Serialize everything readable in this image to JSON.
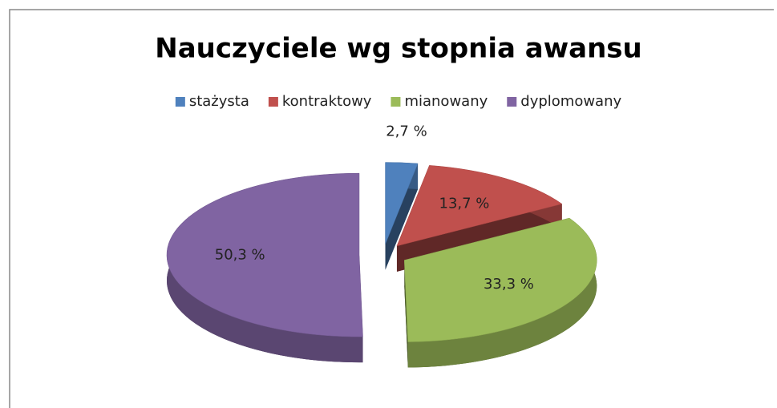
{
  "chart_data": {
    "type": "pie",
    "title": "Nauczyciele wg stopnia awansu",
    "categories": [
      "stażysta",
      "kontraktowy",
      "mianowany",
      "dyplomowany"
    ],
    "values": [
      2.7,
      13.7,
      33.3,
      50.3
    ],
    "value_labels": [
      "2,7 %",
      "13,7 %",
      "33,3 %",
      "50,3 %"
    ],
    "colors": [
      "#4f81bd",
      "#c0504d",
      "#9bbb59",
      "#8064a2"
    ],
    "legend": "top"
  }
}
